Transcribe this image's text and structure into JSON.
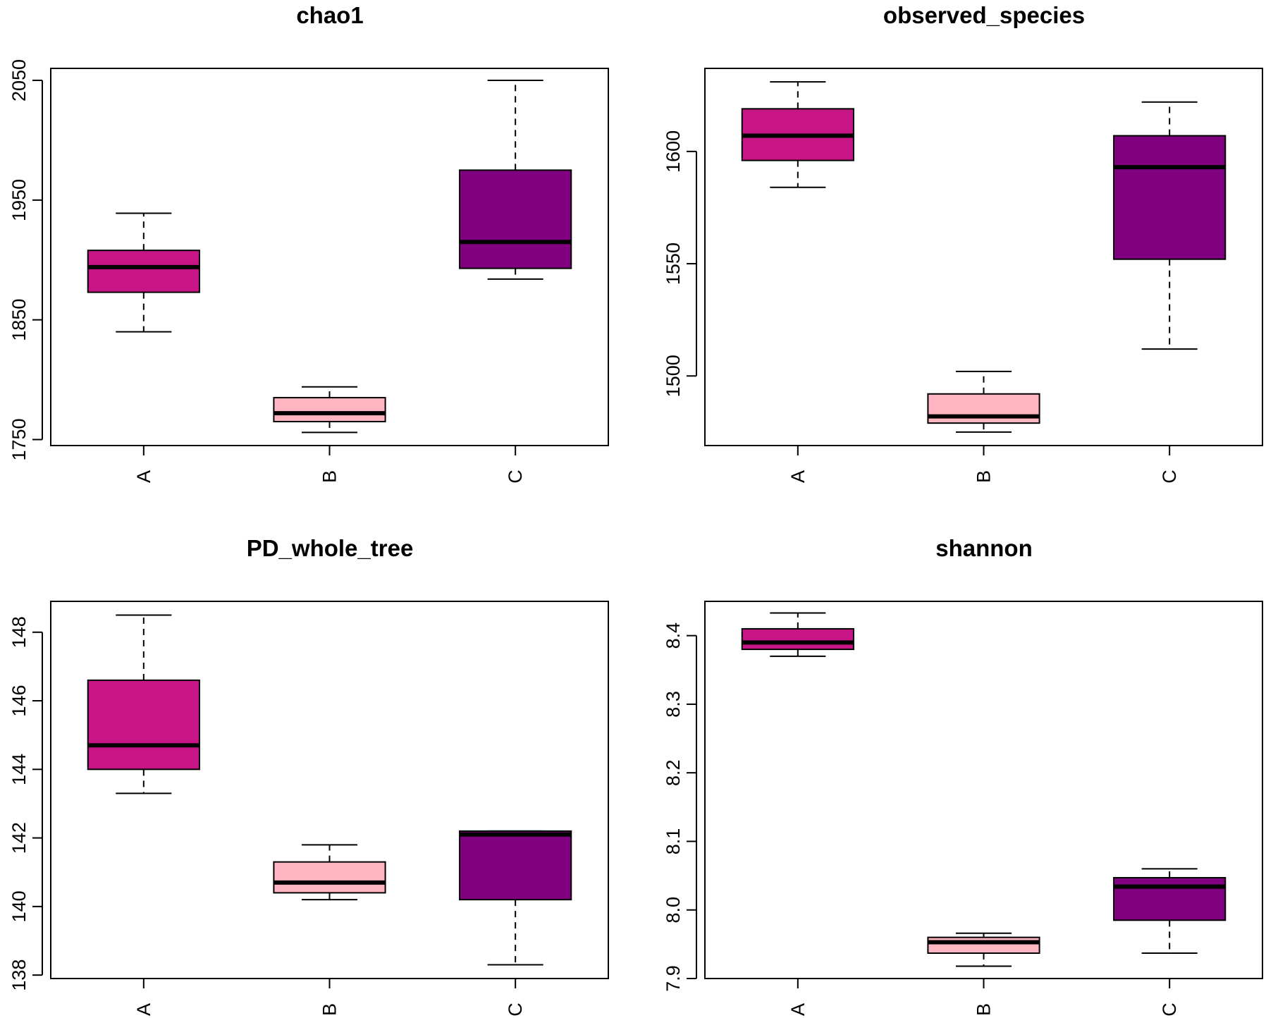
{
  "colors": {
    "A": "#c71585",
    "B": "#ffb6c1",
    "C": "#800080",
    "frame": "#000000"
  },
  "chart_data": [
    {
      "type": "box",
      "title": "chao1",
      "categories": [
        "A",
        "B",
        "C"
      ],
      "ylim": [
        1745,
        2060
      ],
      "yticks": [
        1750,
        1850,
        1950,
        2050
      ],
      "ytick_labels": [
        "1750",
        "1850",
        "1950",
        "2050"
      ],
      "boxes": [
        {
          "category": "A",
          "whisker_low": 1840,
          "q1": 1873,
          "median": 1894,
          "q3": 1908,
          "whisker_high": 1939
        },
        {
          "category": "B",
          "whisker_low": 1756,
          "q1": 1765,
          "median": 1772,
          "q3": 1785,
          "whisker_high": 1794
        },
        {
          "category": "C",
          "whisker_low": 1884,
          "q1": 1893,
          "median": 1915,
          "q3": 1975,
          "whisker_high": 2050
        }
      ]
    },
    {
      "type": "box",
      "title": "observed_species",
      "categories": [
        "A",
        "B",
        "C"
      ],
      "ylim": [
        1469,
        1637
      ],
      "yticks": [
        1500,
        1550,
        1600
      ],
      "ytick_labels": [
        "1500",
        "1550",
        "1600"
      ],
      "boxes": [
        {
          "category": "A",
          "whisker_low": 1584,
          "q1": 1596,
          "median": 1607,
          "q3": 1619,
          "whisker_high": 1631
        },
        {
          "category": "B",
          "whisker_low": 1475,
          "q1": 1479,
          "median": 1482,
          "q3": 1492,
          "whisker_high": 1502
        },
        {
          "category": "C",
          "whisker_low": 1512,
          "q1": 1552,
          "median": 1593,
          "q3": 1607,
          "whisker_high": 1622
        }
      ]
    },
    {
      "type": "box",
      "title": "PD_whole_tree",
      "categories": [
        "A",
        "B",
        "C"
      ],
      "ylim": [
        137.9,
        148.9
      ],
      "yticks": [
        138,
        140,
        142,
        144,
        146,
        148
      ],
      "ytick_labels": [
        "138",
        "140",
        "142",
        "144",
        "146",
        "148"
      ],
      "boxes": [
        {
          "category": "A",
          "whisker_low": 143.3,
          "q1": 144.0,
          "median": 144.7,
          "q3": 146.6,
          "whisker_high": 148.5
        },
        {
          "category": "B",
          "whisker_low": 140.2,
          "q1": 140.4,
          "median": 140.7,
          "q3": 141.3,
          "whisker_high": 141.8
        },
        {
          "category": "C",
          "whisker_low": 138.3,
          "q1": 140.2,
          "median": 142.1,
          "q3": 142.2,
          "whisker_high": 142.2
        }
      ]
    },
    {
      "type": "box",
      "title": "shannon",
      "categories": [
        "A",
        "B",
        "C"
      ],
      "ylim": [
        7.9,
        8.45
      ],
      "yticks": [
        7.9,
        8.0,
        8.1,
        8.2,
        8.3,
        8.4
      ],
      "ytick_labels": [
        "7.9",
        "8.0",
        "8.1",
        "8.2",
        "8.3",
        "8.4"
      ],
      "boxes": [
        {
          "category": "A",
          "whisker_low": 8.37,
          "q1": 8.38,
          "median": 8.39,
          "q3": 8.41,
          "whisker_high": 8.433
        },
        {
          "category": "B",
          "whisker_low": 7.918,
          "q1": 7.937,
          "median": 7.953,
          "q3": 7.96,
          "whisker_high": 7.966
        },
        {
          "category": "C",
          "whisker_low": 7.937,
          "q1": 7.985,
          "median": 8.034,
          "q3": 8.047,
          "whisker_high": 8.06
        }
      ]
    }
  ]
}
